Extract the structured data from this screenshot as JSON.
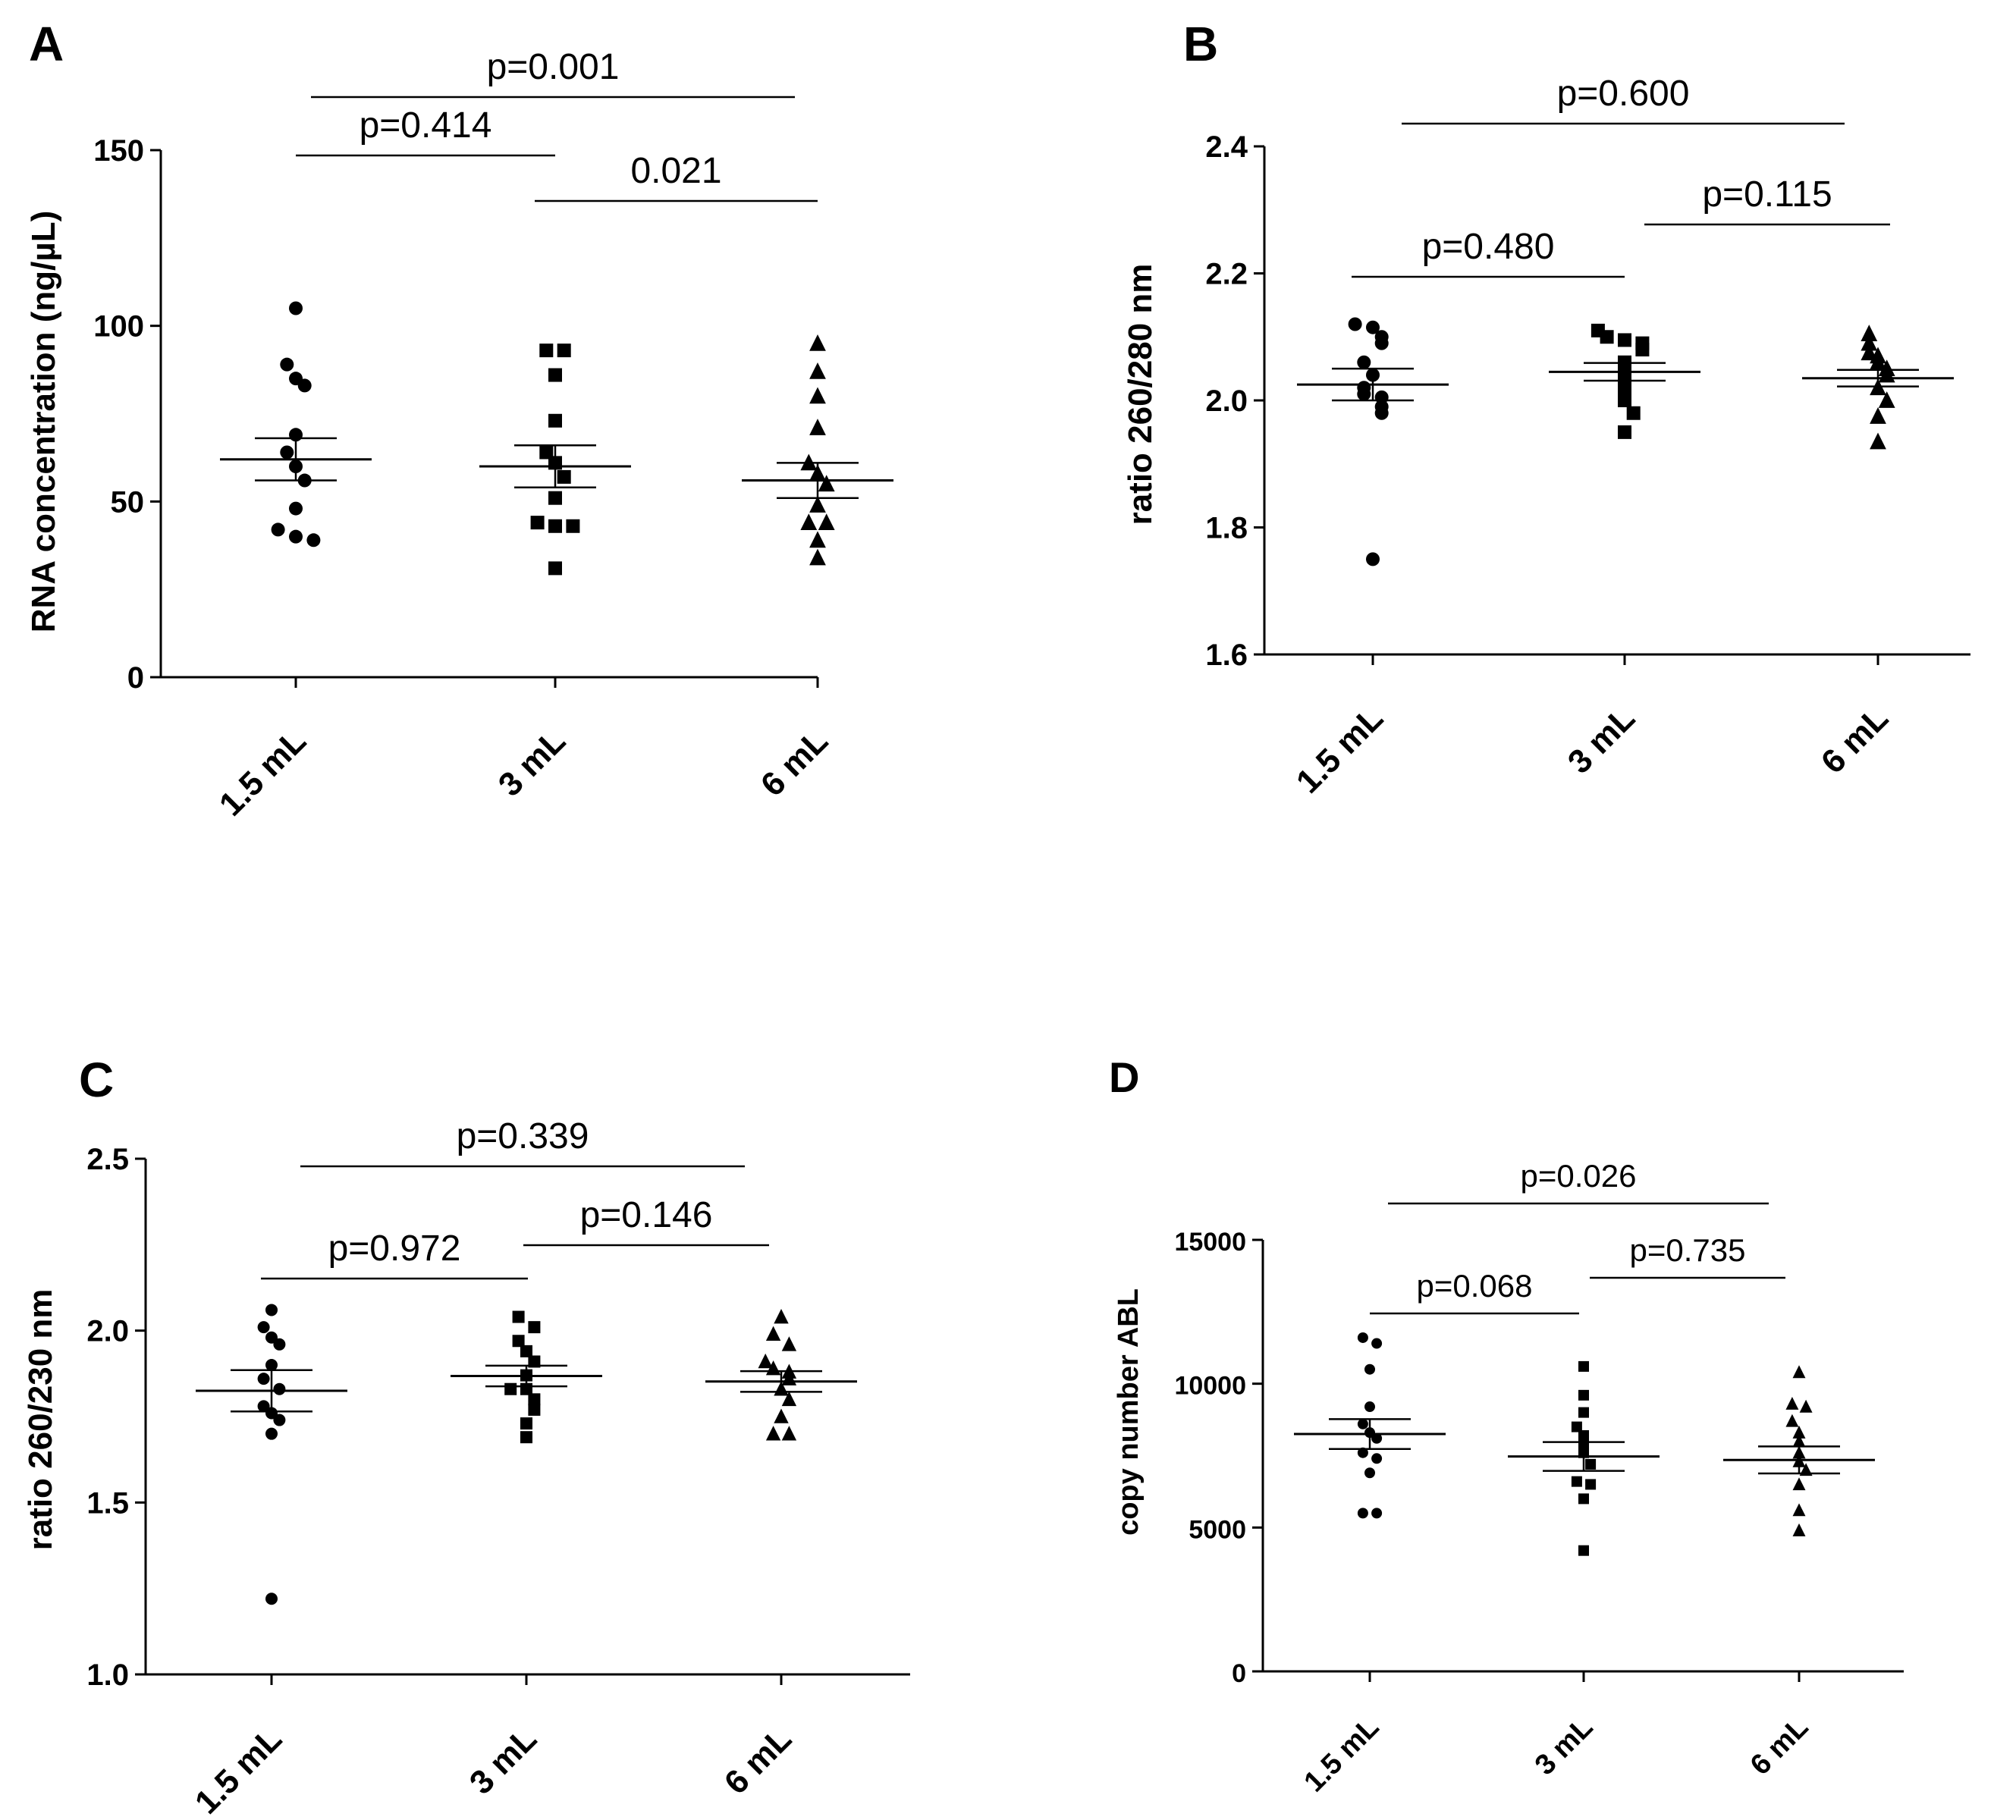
{
  "chart_data": [
    {
      "panel": "A",
      "type": "scatter",
      "ylabel": "RNA concentration (ng/µL)",
      "categories": [
        "1.5 mL",
        "3 mL",
        "6 mL"
      ],
      "yticks": [
        0,
        50,
        100,
        150
      ],
      "ylim": [
        0,
        150
      ],
      "marker": [
        "circle",
        "square",
        "triangle"
      ],
      "series": [
        {
          "name": "1.5 mL",
          "values": [
            105,
            89,
            85,
            83,
            69,
            64,
            60,
            56,
            48,
            42,
            40,
            39
          ],
          "mean": 62,
          "sem": 6
        },
        {
          "name": "3 mL",
          "values": [
            93,
            93,
            86,
            73,
            64,
            61,
            57,
            51,
            44,
            43,
            43,
            31
          ],
          "mean": 60,
          "sem": 6
        },
        {
          "name": "6 mL",
          "values": [
            95,
            87,
            80,
            71,
            61,
            58,
            55,
            49,
            44,
            44,
            39,
            34
          ],
          "mean": 56,
          "sem": 5
        }
      ],
      "comparisons": [
        {
          "from": 0,
          "to": 2,
          "label": "p=0.001"
        },
        {
          "from": 1,
          "to": 2,
          "label": "0.021"
        },
        {
          "from": 0,
          "to": 1,
          "label": "p=0.414"
        }
      ]
    },
    {
      "panel": "B",
      "type": "scatter",
      "ylabel": "ratio 260/280 nm",
      "categories": [
        "1.5 mL",
        "3 mL",
        "6 mL"
      ],
      "yticks": [
        "1.6",
        "1.8",
        "2.0",
        "2.2",
        "2.4"
      ],
      "ylim": [
        1.6,
        2.4
      ],
      "marker": [
        "circle",
        "square",
        "triangle"
      ],
      "series": [
        {
          "name": "1.5 mL",
          "values": [
            2.12,
            2.115,
            2.1,
            2.09,
            2.06,
            2.04,
            2.02,
            2.01,
            2.005,
            1.99,
            1.98,
            1.75
          ],
          "mean": 2.025,
          "sem": 0.025
        },
        {
          "name": "3 mL",
          "values": [
            2.11,
            2.1,
            2.095,
            2.09,
            2.08,
            2.06,
            2.045,
            2.035,
            2.015,
            2.0,
            1.98,
            1.95
          ],
          "mean": 2.045,
          "sem": 0.014
        },
        {
          "name": "6 mL",
          "values": [
            2.105,
            2.09,
            2.075,
            2.07,
            2.06,
            2.05,
            2.04,
            2.02,
            2.0,
            1.975,
            1.935
          ],
          "mean": 2.035,
          "sem": 0.013
        }
      ],
      "comparisons": [
        {
          "from": 0,
          "to": 2,
          "label": "p=0.600"
        },
        {
          "from": 1,
          "to": 2,
          "label": "p=0.115"
        },
        {
          "from": 0,
          "to": 1,
          "label": "p=0.480"
        }
      ]
    },
    {
      "panel": "C",
      "type": "scatter",
      "ylabel": "ratio 260/230 nm",
      "categories": [
        "1.5 mL",
        "3 mL",
        "6 mL"
      ],
      "yticks": [
        "1.0",
        "1.5",
        "2.0",
        "2.5"
      ],
      "ylim": [
        1.0,
        2.5
      ],
      "marker": [
        "circle",
        "square",
        "triangle"
      ],
      "series": [
        {
          "name": "1.5 mL",
          "values": [
            2.06,
            2.01,
            1.98,
            1.96,
            1.9,
            1.86,
            1.83,
            1.78,
            1.76,
            1.74,
            1.7,
            1.22
          ],
          "mean": 1.825,
          "sem": 0.06
        },
        {
          "name": "3 mL",
          "values": [
            2.04,
            2.01,
            1.97,
            1.94,
            1.91,
            1.87,
            1.83,
            1.83,
            1.8,
            1.77,
            1.73,
            1.69
          ],
          "mean": 1.868,
          "sem": 0.03
        },
        {
          "name": "6 mL",
          "values": [
            2.04,
            1.99,
            1.96,
            1.91,
            1.89,
            1.88,
            1.86,
            1.83,
            1.8,
            1.75,
            1.7,
            1.7
          ],
          "mean": 1.852,
          "sem": 0.03
        }
      ],
      "comparisons": [
        {
          "from": 0,
          "to": 2,
          "label": "p=0.339"
        },
        {
          "from": 1,
          "to": 2,
          "label": "p=0.146"
        },
        {
          "from": 0,
          "to": 1,
          "label": "p=0.972"
        }
      ]
    },
    {
      "panel": "D",
      "type": "scatter",
      "ylabel": "copy number ABL",
      "categories": [
        "1.5 mL",
        "3 mL",
        "6 mL"
      ],
      "yticks": [
        0,
        5000,
        10000,
        15000
      ],
      "ylim": [
        0,
        15000
      ],
      "marker": [
        "circle",
        "square",
        "triangle"
      ],
      "series": [
        {
          "name": "1.5 mL",
          "values": [
            11600,
            11400,
            10500,
            9200,
            8600,
            8300,
            8100,
            7600,
            7400,
            6900,
            5500,
            5500
          ],
          "mean": 8250,
          "sem": 520
        },
        {
          "name": "3 mL",
          "values": [
            10600,
            9600,
            9000,
            8500,
            8200,
            7900,
            7600,
            7200,
            6600,
            6500,
            6000,
            4200
          ],
          "mean": 7470,
          "sem": 500
        },
        {
          "name": "6 mL",
          "values": [
            10400,
            9300,
            9200,
            8700,
            8300,
            8000,
            7600,
            7300,
            7000,
            6500,
            5600,
            4900
          ],
          "mean": 7350,
          "sem": 470
        }
      ],
      "comparisons": [
        {
          "from": 0,
          "to": 2,
          "label": "p=0.026"
        },
        {
          "from": 0,
          "to": 1,
          "label": "p=0.068"
        },
        {
          "from": 1,
          "to": 2,
          "label": "p=0.735"
        }
      ]
    }
  ]
}
